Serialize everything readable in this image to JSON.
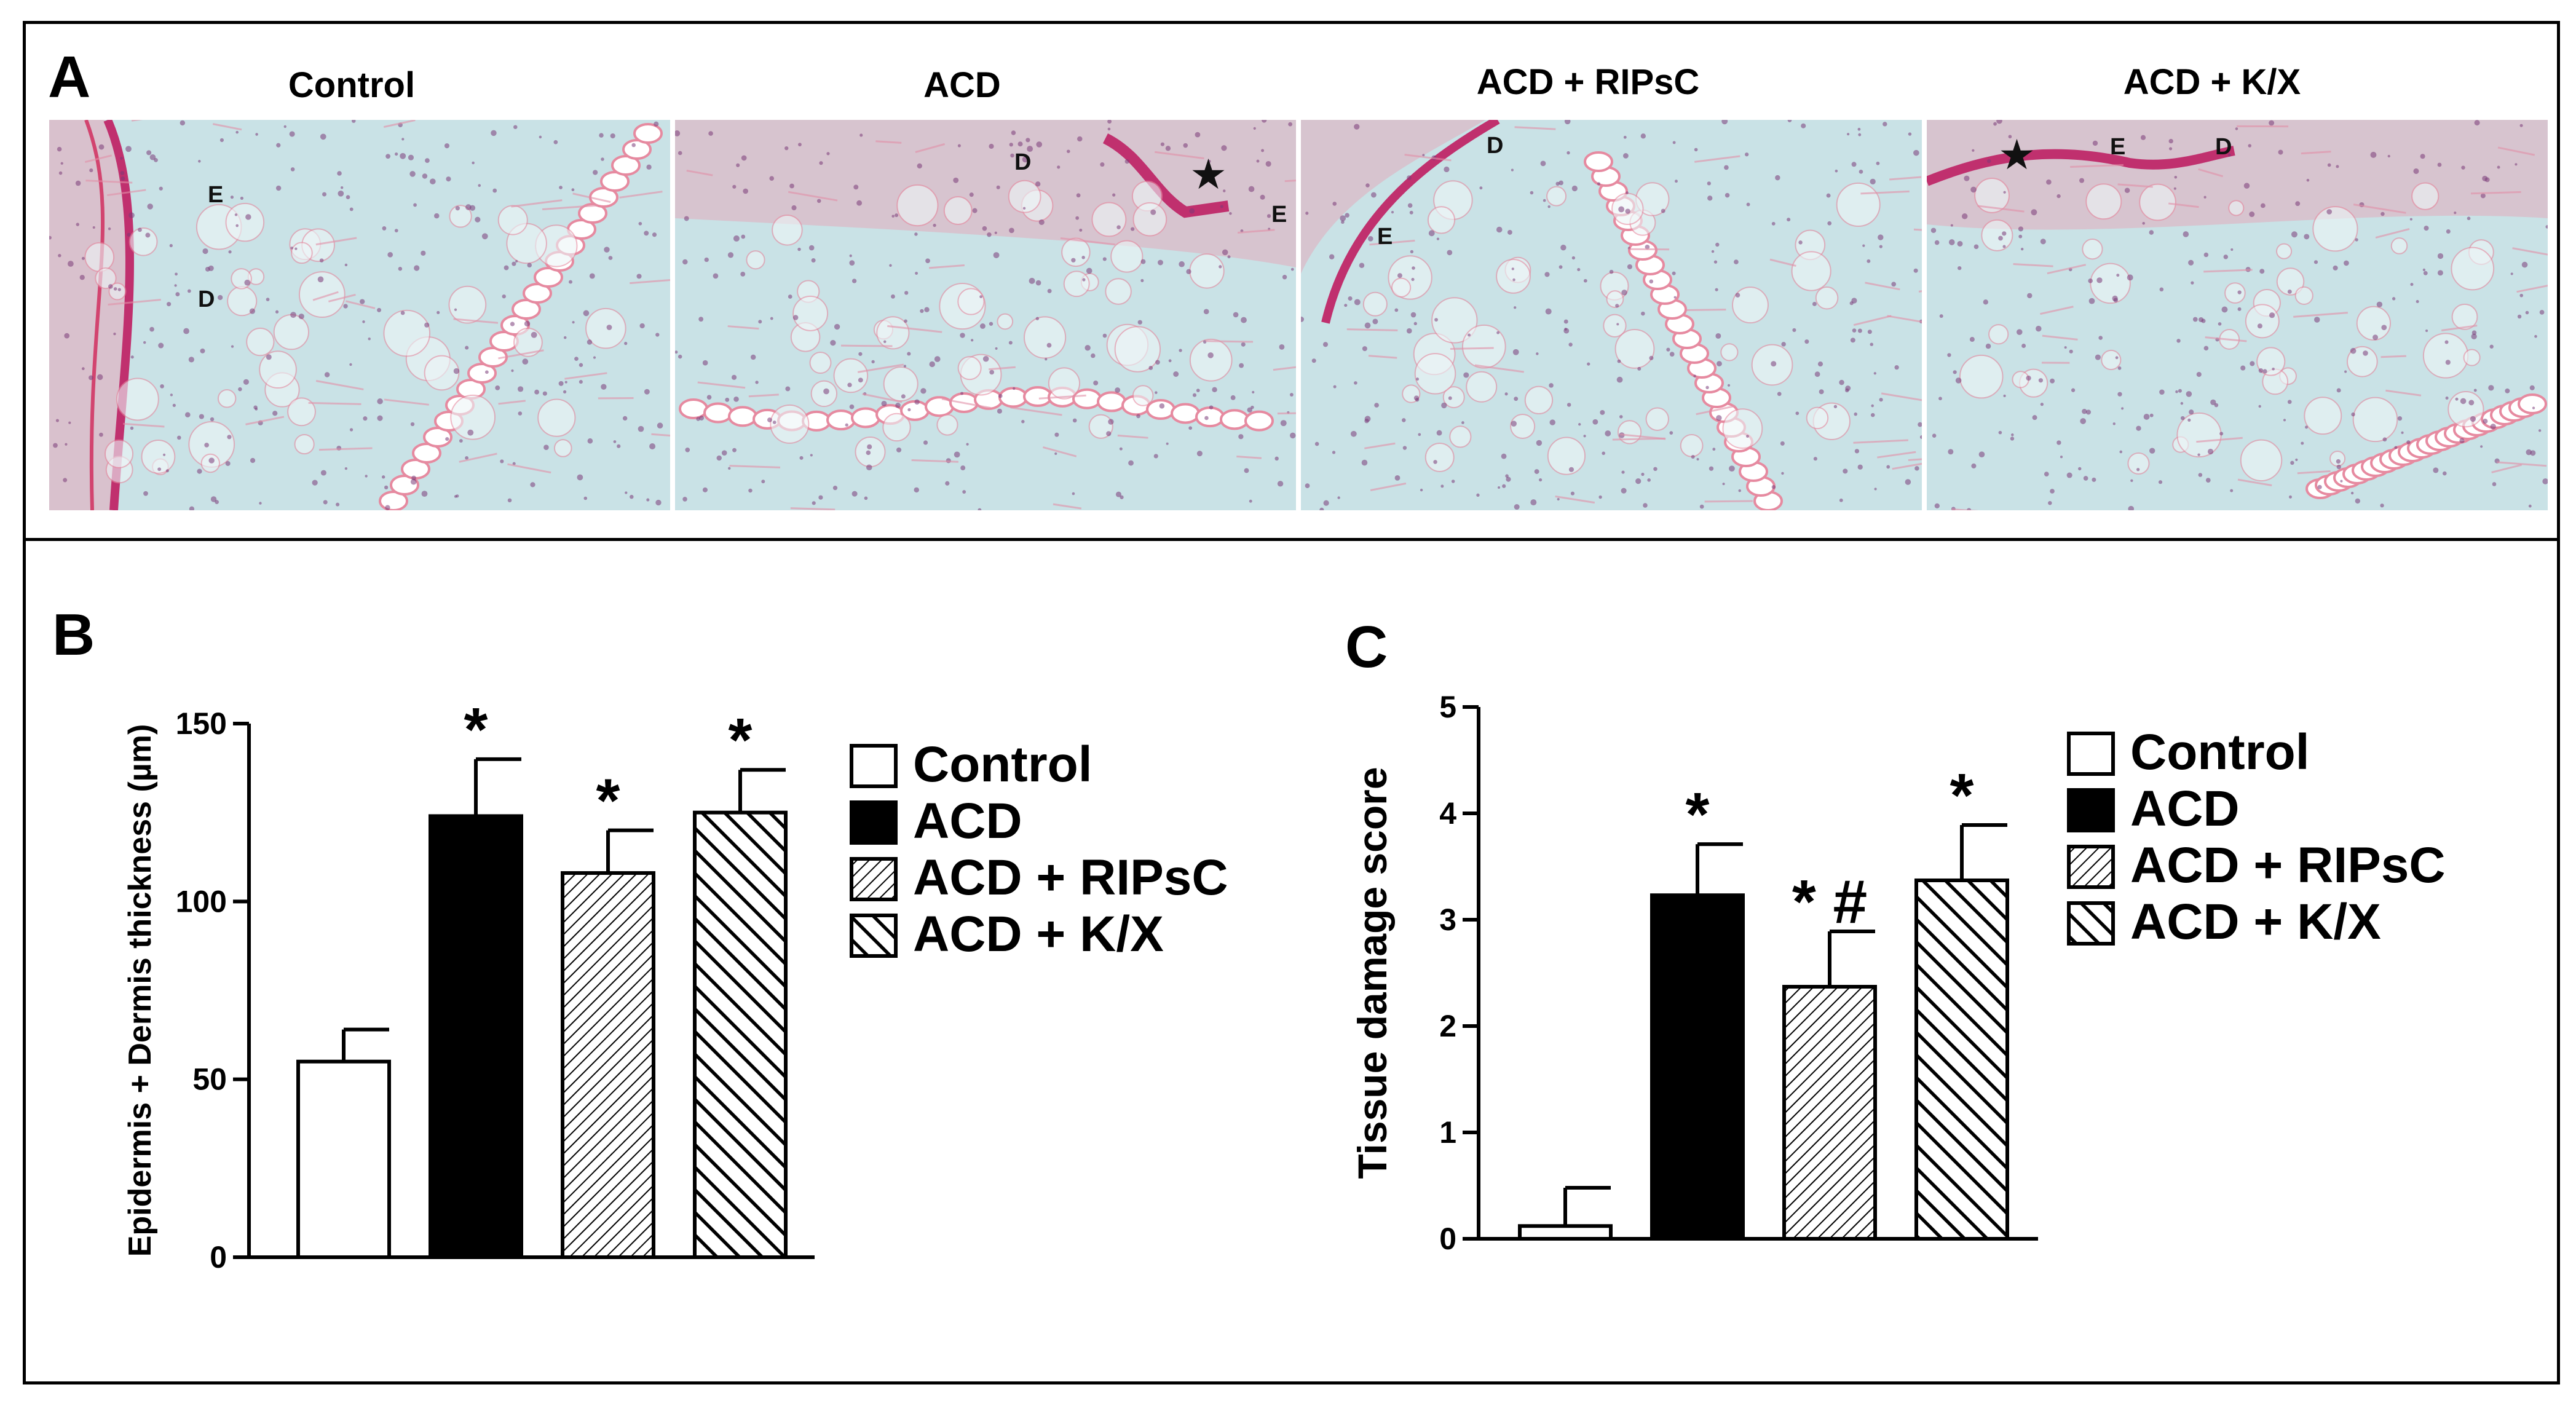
{
  "panel_a": {
    "letter": "A",
    "columns": [
      {
        "title": "Control",
        "labels": [
          "E",
          "D"
        ],
        "star": false
      },
      {
        "title": "ACD",
        "labels": [
          "D",
          "E"
        ],
        "star": true
      },
      {
        "title": "ACD + RIPsC",
        "labels": [
          "D",
          "E"
        ],
        "star": false
      },
      {
        "title": "ACD + K/X",
        "labels": [
          "E",
          "D"
        ],
        "star": true
      }
    ],
    "colors": {
      "background": "#c9e2e6",
      "tissue": "#e6a6b8",
      "epidermis": "#c0306e",
      "nuclei": "#7a3a78",
      "fat_line": "#e68aa0"
    }
  },
  "chart_data": [
    {
      "type": "bar",
      "panel_letter": "B",
      "categories": [
        "Control",
        "ACD",
        "ACD + RIPsC",
        "ACD + K/X"
      ],
      "values": [
        55,
        124,
        108,
        125
      ],
      "errors": [
        9,
        16,
        12,
        12
      ],
      "significance": [
        "",
        "*",
        "*",
        "*"
      ],
      "fills": [
        "open",
        "solid",
        "fine-hatch",
        "coarse-hatch"
      ],
      "ylabel": "Epidermis + Dermis thickness (µm)",
      "xlabel": "",
      "ylim": [
        0,
        150
      ],
      "yticks": [
        0,
        50,
        100,
        150
      ],
      "legend_position": "right",
      "grid": false
    },
    {
      "type": "bar",
      "panel_letter": "C",
      "categories": [
        "Control",
        "ACD",
        "ACD + RIPsC",
        "ACD + K/X"
      ],
      "values": [
        0.12,
        3.23,
        2.37,
        3.37
      ],
      "errors": [
        0.36,
        0.48,
        0.52,
        0.52
      ],
      "significance": [
        "",
        "*",
        "* #",
        "*"
      ],
      "fills": [
        "open",
        "solid",
        "fine-hatch",
        "coarse-hatch"
      ],
      "ylabel": "Tissue damage score",
      "xlabel": "",
      "ylim": [
        0,
        5
      ],
      "yticks": [
        0,
        1,
        2,
        3,
        4,
        5
      ],
      "legend_position": "right",
      "grid": false
    }
  ]
}
